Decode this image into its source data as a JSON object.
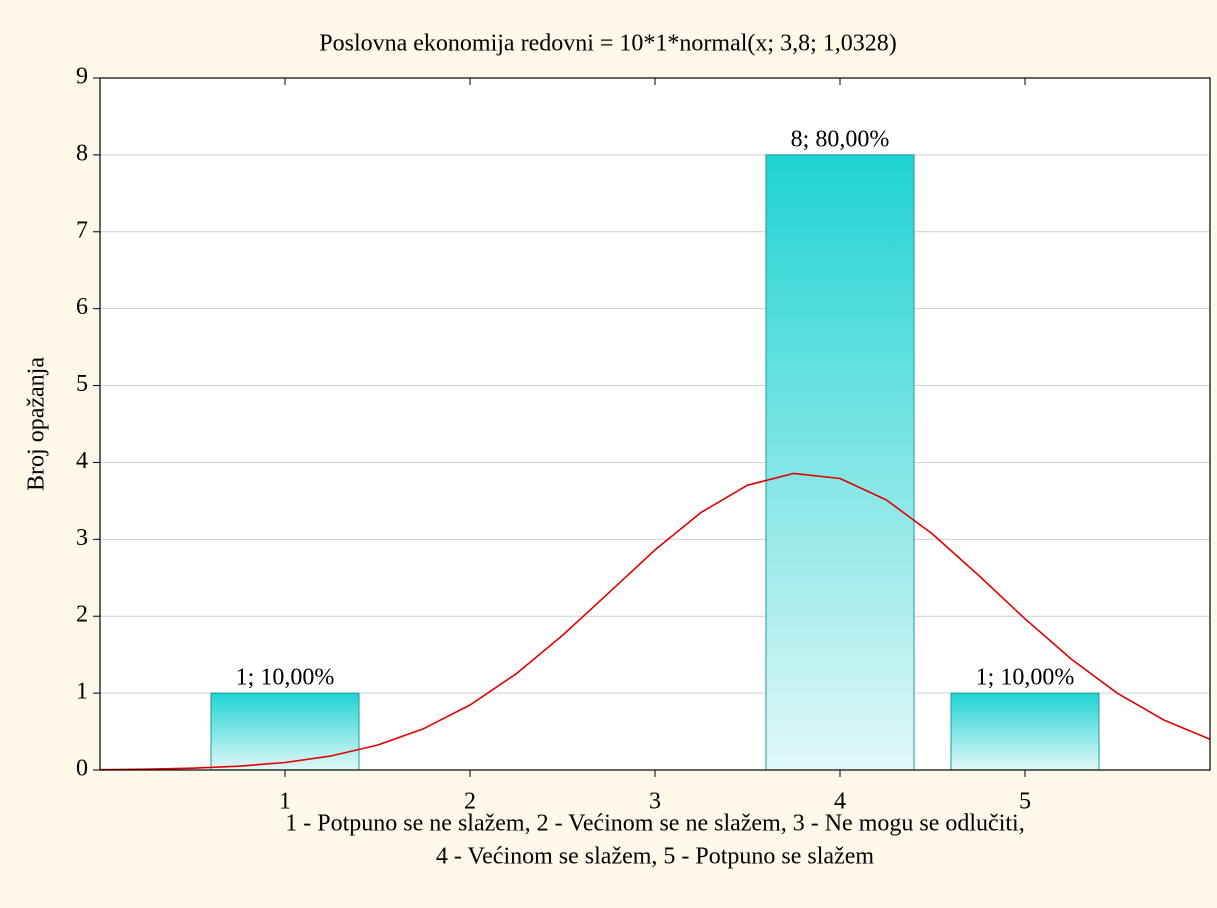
{
  "chart_data": {
    "type": "bar",
    "title": "Poslovna ekonomija redovni = 10*1*normal(x; 3,8; 1,0328)",
    "ylabel": "Broj opažanja",
    "xlabel": [
      "1 - Potpuno se ne slažem, 2 - Većinom se ne slažem, 3 - Ne mogu se odlučiti,",
      "4 - Većinom se slažem, 5 - Potpuno se slažem"
    ],
    "x": [
      1,
      2,
      3,
      4,
      5
    ],
    "values": [
      1,
      0,
      0,
      8,
      1
    ],
    "value_labels": [
      "1; 10,00%",
      null,
      null,
      "8; 80,00%",
      "1; 10,00%"
    ],
    "color": "#1fd3d3",
    "xlim": [
      0,
      6
    ],
    "xticks": [
      1,
      2,
      3,
      4,
      5
    ],
    "ylim": [
      0,
      9
    ],
    "yticks": [
      0,
      1,
      2,
      3,
      4,
      5,
      6,
      7,
      8,
      9
    ],
    "grid": true,
    "curve": {
      "color": "#e00000",
      "x": [
        0,
        0.25,
        0.5,
        0.75,
        1,
        1.25,
        1.5,
        1.75,
        2,
        2.25,
        2.5,
        2.75,
        3,
        3.25,
        3.5,
        3.75,
        4,
        4.25,
        4.5,
        4.75,
        5,
        5.25,
        5.5,
        5.75,
        6
      ],
      "values": [
        0.004,
        0.011,
        0.023,
        0.049,
        0.098,
        0.183,
        0.324,
        0.539,
        0.846,
        1.253,
        1.75,
        2.304,
        2.862,
        3.352,
        3.704,
        3.858,
        3.791,
        3.513,
        3.07,
        2.53,
        1.967,
        1.442,
        0.997,
        0.65,
        0.4
      ]
    }
  }
}
